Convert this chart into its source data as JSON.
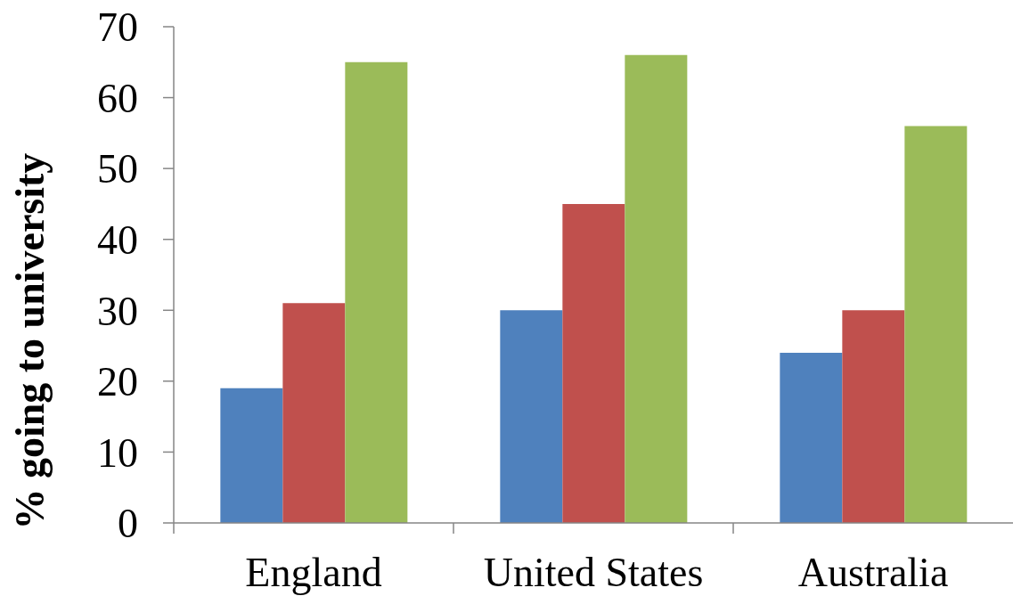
{
  "chart_data": {
    "type": "bar",
    "ylabel": "% going to university",
    "categories": [
      "England",
      "United States",
      "Australia"
    ],
    "series": [
      {
        "color": "#4f81bd",
        "values": [
          19,
          30,
          24
        ]
      },
      {
        "color": "#c0504d",
        "values": [
          31,
          45,
          30
        ]
      },
      {
        "color": "#9bbb59",
        "values": [
          65,
          66,
          56
        ]
      }
    ],
    "ylim": [
      0,
      70
    ],
    "yticks": [
      0,
      10,
      20,
      30,
      40,
      50,
      60,
      70
    ]
  }
}
